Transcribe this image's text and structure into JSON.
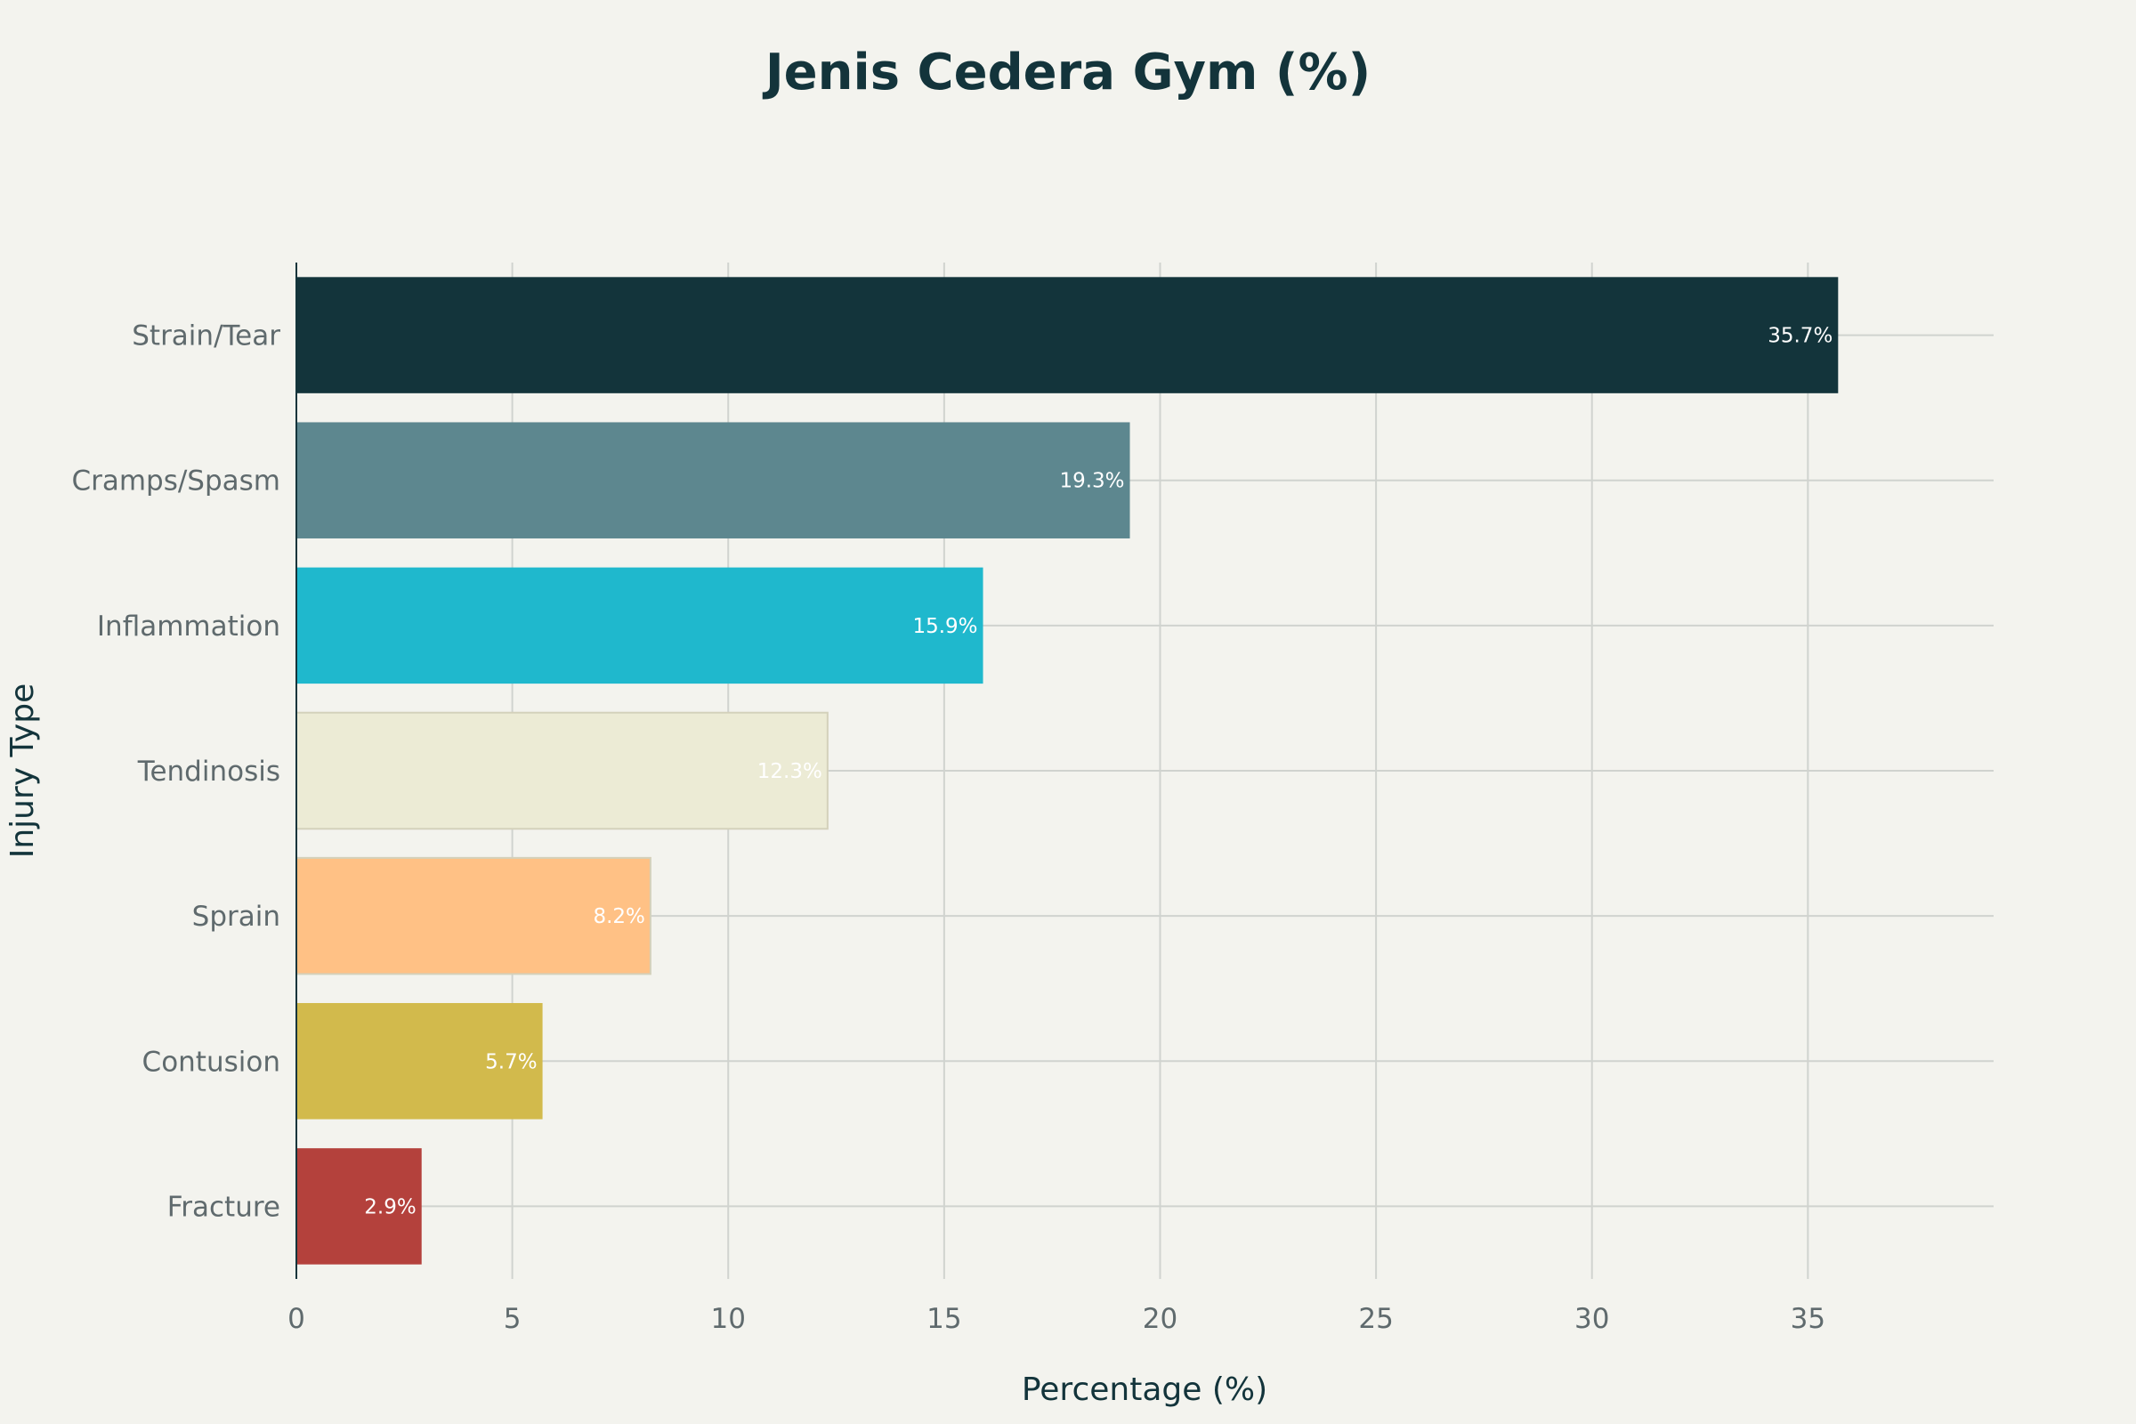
{
  "chart_data": {
    "type": "bar",
    "orientation": "horizontal",
    "title": "Jenis Cedera Gym (%)",
    "xlabel": "Percentage (%)",
    "ylabel": "Injury Type",
    "xlim": [
      0,
      39.3
    ],
    "xticks": [
      0,
      5,
      10,
      15,
      20,
      25,
      30,
      35
    ],
    "grid": true,
    "legend": "none",
    "categories": [
      "Strain/Tear",
      "Cramps/Spasm",
      "Inflammation",
      "Tendinosis",
      "Sprain",
      "Contusion",
      "Fracture"
    ],
    "values": [
      35.7,
      19.3,
      15.9,
      12.3,
      8.2,
      5.7,
      2.9
    ],
    "data_labels": [
      "35.7%",
      "19.3%",
      "15.9%",
      "12.3%",
      "8.2%",
      "5.7%",
      "2.9%"
    ],
    "colors": [
      "#13343b",
      "#5d878f",
      "#1fb8cd",
      "#ecebd5",
      "#ffc185",
      "#d2ba4c",
      "#b4413c"
    ]
  }
}
